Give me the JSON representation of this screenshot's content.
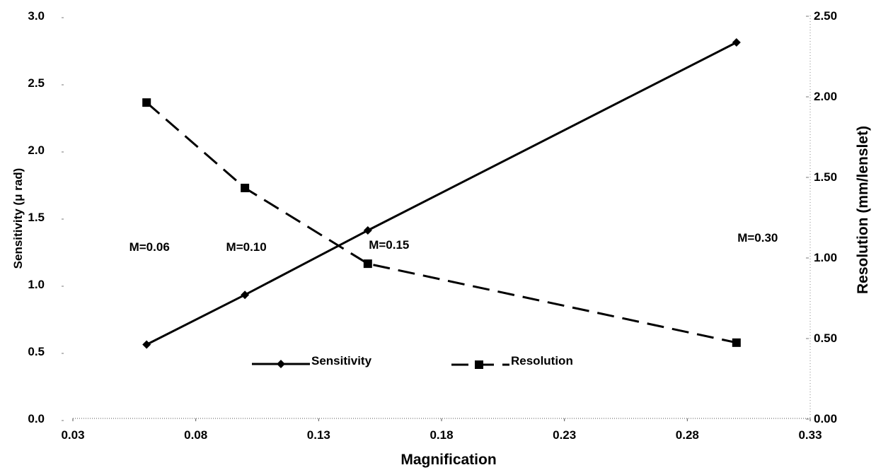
{
  "chart_data": {
    "type": "line",
    "xlabel": "Magnification",
    "ylabel_left": "Sensitivity (μ rad)",
    "ylabel_right": "Resolution (mm/lenslet)",
    "xlim": [
      0.03,
      0.33
    ],
    "ylim_left": [
      0.0,
      3.0
    ],
    "ylim_right": [
      0.0,
      2.5
    ],
    "x_ticks": [
      "0.03",
      "0.08",
      "0.13",
      "0.18",
      "0.23",
      "0.28",
      "0.33"
    ],
    "y_left_ticks": [
      "0.0",
      "0.5",
      "1.0",
      "1.5",
      "2.0",
      "2.5",
      "3.0"
    ],
    "y_right_ticks": [
      "0.00",
      "0.50",
      "1.00",
      "1.50",
      "2.00",
      "2.50"
    ],
    "x_tick_values": [
      0.03,
      0.08,
      0.13,
      0.18,
      0.23,
      0.28,
      0.33
    ],
    "y_left_tick_values": [
      0,
      0.5,
      1.0,
      1.5,
      2.0,
      2.5,
      3.0
    ],
    "y_right_tick_values": [
      0,
      0.5,
      1.0,
      1.5,
      2.0,
      2.5
    ],
    "grid": false,
    "legend_position": "bottom-center",
    "series": [
      {
        "name": "Sensitivity",
        "axis": "left",
        "marker": "diamond",
        "line_style": "solid",
        "color": "#000000",
        "x": [
          0.06,
          0.1,
          0.15,
          0.3
        ],
        "y": [
          0.55,
          0.92,
          1.4,
          2.8
        ]
      },
      {
        "name": "Resolution",
        "axis": "right",
        "marker": "square",
        "line_style": "dashed",
        "color": "#000000",
        "x": [
          0.06,
          0.1,
          0.15,
          0.3
        ],
        "y": [
          1.96,
          1.43,
          0.96,
          0.47
        ]
      }
    ],
    "annotations": [
      {
        "text": "M=0.06",
        "x": 0.06
      },
      {
        "text": "M=0.10",
        "x": 0.1
      },
      {
        "text": "M=0.15",
        "x": 0.15
      },
      {
        "text": "M=0.30",
        "x": 0.3
      }
    ]
  }
}
